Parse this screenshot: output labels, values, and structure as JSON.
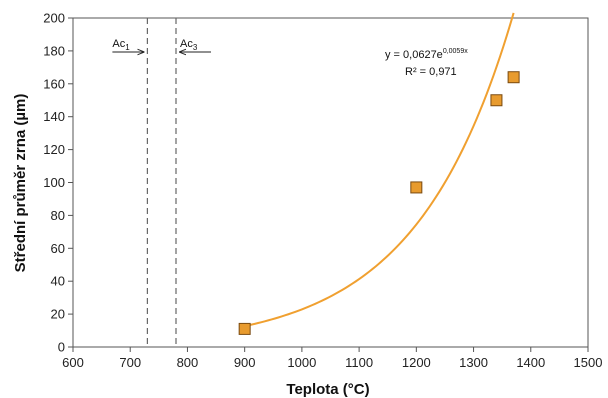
{
  "chart_data": {
    "type": "scatter",
    "title": "",
    "xlabel": "Teplota (°C)",
    "ylabel": "Střední průměr zrna (µm)",
    "xlim": [
      600,
      1500
    ],
    "ylim": [
      0,
      200
    ],
    "xticks": [
      600,
      700,
      800,
      900,
      1000,
      1100,
      1200,
      1300,
      1400,
      1500
    ],
    "yticks": [
      0,
      20,
      40,
      60,
      80,
      100,
      120,
      140,
      160,
      180,
      200
    ],
    "grid": false,
    "series": [
      {
        "marker": "square",
        "color": "#E89B2E",
        "edge_color": "#7A4A10",
        "x": [
          900,
          1200,
          1340,
          1370
        ],
        "y": [
          11,
          97,
          150,
          164
        ]
      }
    ],
    "trendline": {
      "type": "exponential",
      "color": "#F0A030",
      "a": 0.0627,
      "b": 0.0059,
      "x_range": [
        900,
        1370
      ],
      "equation_prefix": "y = 0,0627e",
      "equation_exponent": "0,0059x",
      "r2": "R² = 0,971"
    },
    "reference_lines": [
      {
        "x": 730,
        "label_main": "Ac",
        "label_sub": "1",
        "arrow": "right"
      },
      {
        "x": 780,
        "label_main": "Ac",
        "label_sub": "3",
        "arrow": "left"
      }
    ]
  }
}
